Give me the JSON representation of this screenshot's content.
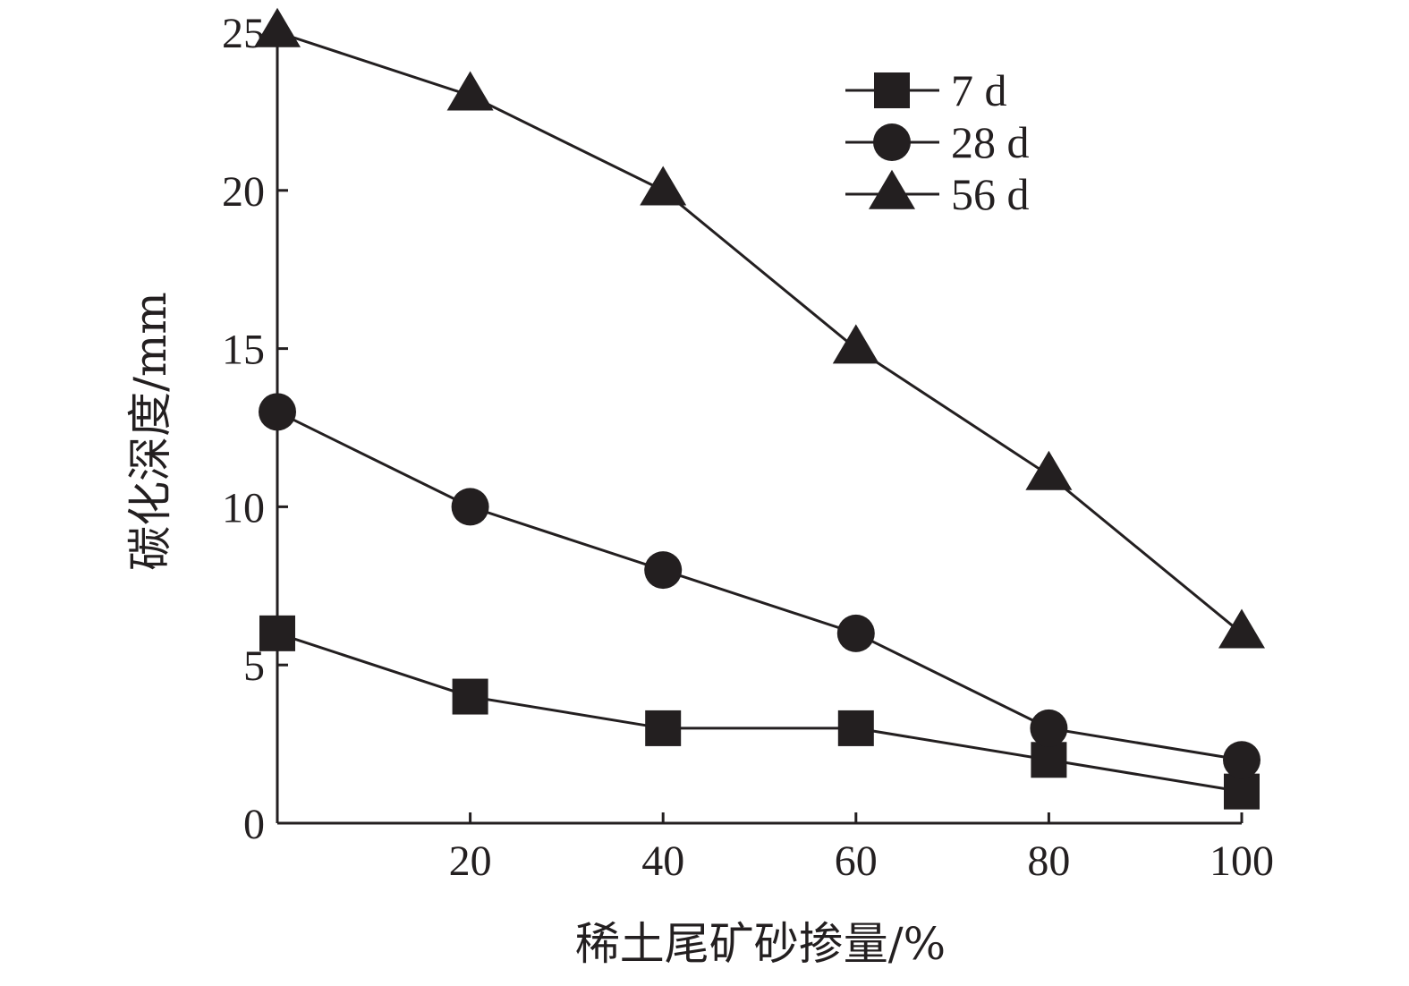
{
  "chart_data": {
    "type": "line",
    "title": "",
    "xlabel": "稀土尾矿砂掺量/%",
    "ylabel": "碳化深度/mm",
    "x": [
      0,
      20,
      40,
      60,
      80,
      100
    ],
    "xticks": [
      "20",
      "40",
      "60",
      "80",
      "100"
    ],
    "xtick_values": [
      20,
      40,
      60,
      80,
      100
    ],
    "yticks": [
      "0",
      "5",
      "10",
      "15",
      "20",
      "25"
    ],
    "ytick_values": [
      0,
      5,
      10,
      15,
      20,
      25
    ],
    "xlim": [
      0,
      100
    ],
    "ylim": [
      0,
      25
    ],
    "grid": false,
    "legend_position": "top-right",
    "series": [
      {
        "name": "7 d",
        "marker": "square",
        "color": "#231f20",
        "values": [
          6,
          4,
          3,
          3,
          2,
          1
        ]
      },
      {
        "name": "28 d",
        "marker": "circle",
        "color": "#231f20",
        "values": [
          13,
          10,
          8,
          6,
          3,
          2
        ]
      },
      {
        "name": "56 d",
        "marker": "triangle",
        "color": "#231f20",
        "values": [
          25,
          23,
          20,
          15,
          11,
          6
        ]
      }
    ]
  }
}
